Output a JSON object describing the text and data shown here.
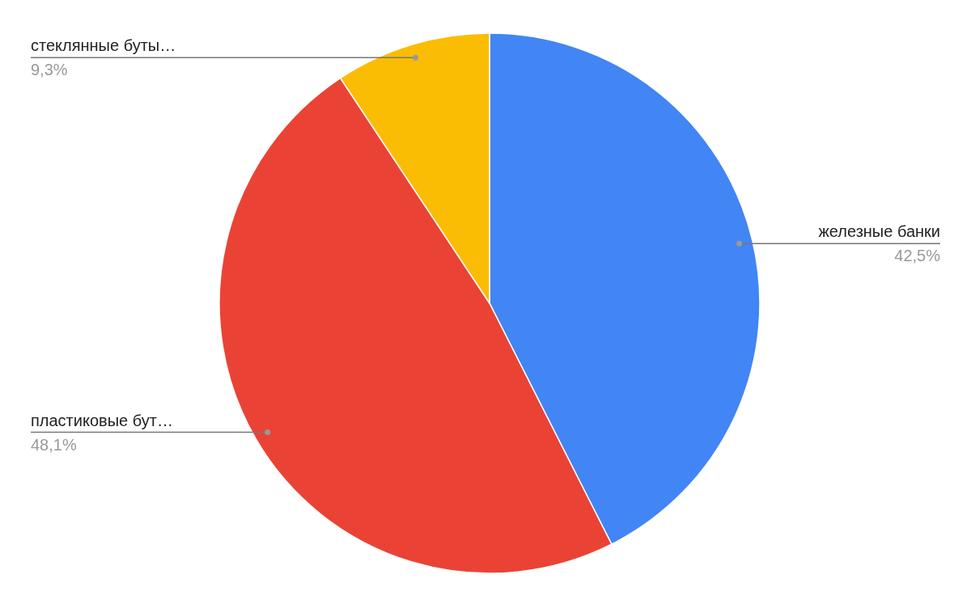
{
  "chart_data": {
    "type": "pie",
    "categories": [
      "железные банки",
      "пластиковые бут…",
      "стеклянные буты…"
    ],
    "values": [
      42.5,
      48.1,
      9.3
    ],
    "colors": [
      "#4285f4",
      "#ea4335",
      "#fbbc04"
    ],
    "value_labels": [
      "42,5%",
      "48,1%",
      "9,3%"
    ]
  }
}
